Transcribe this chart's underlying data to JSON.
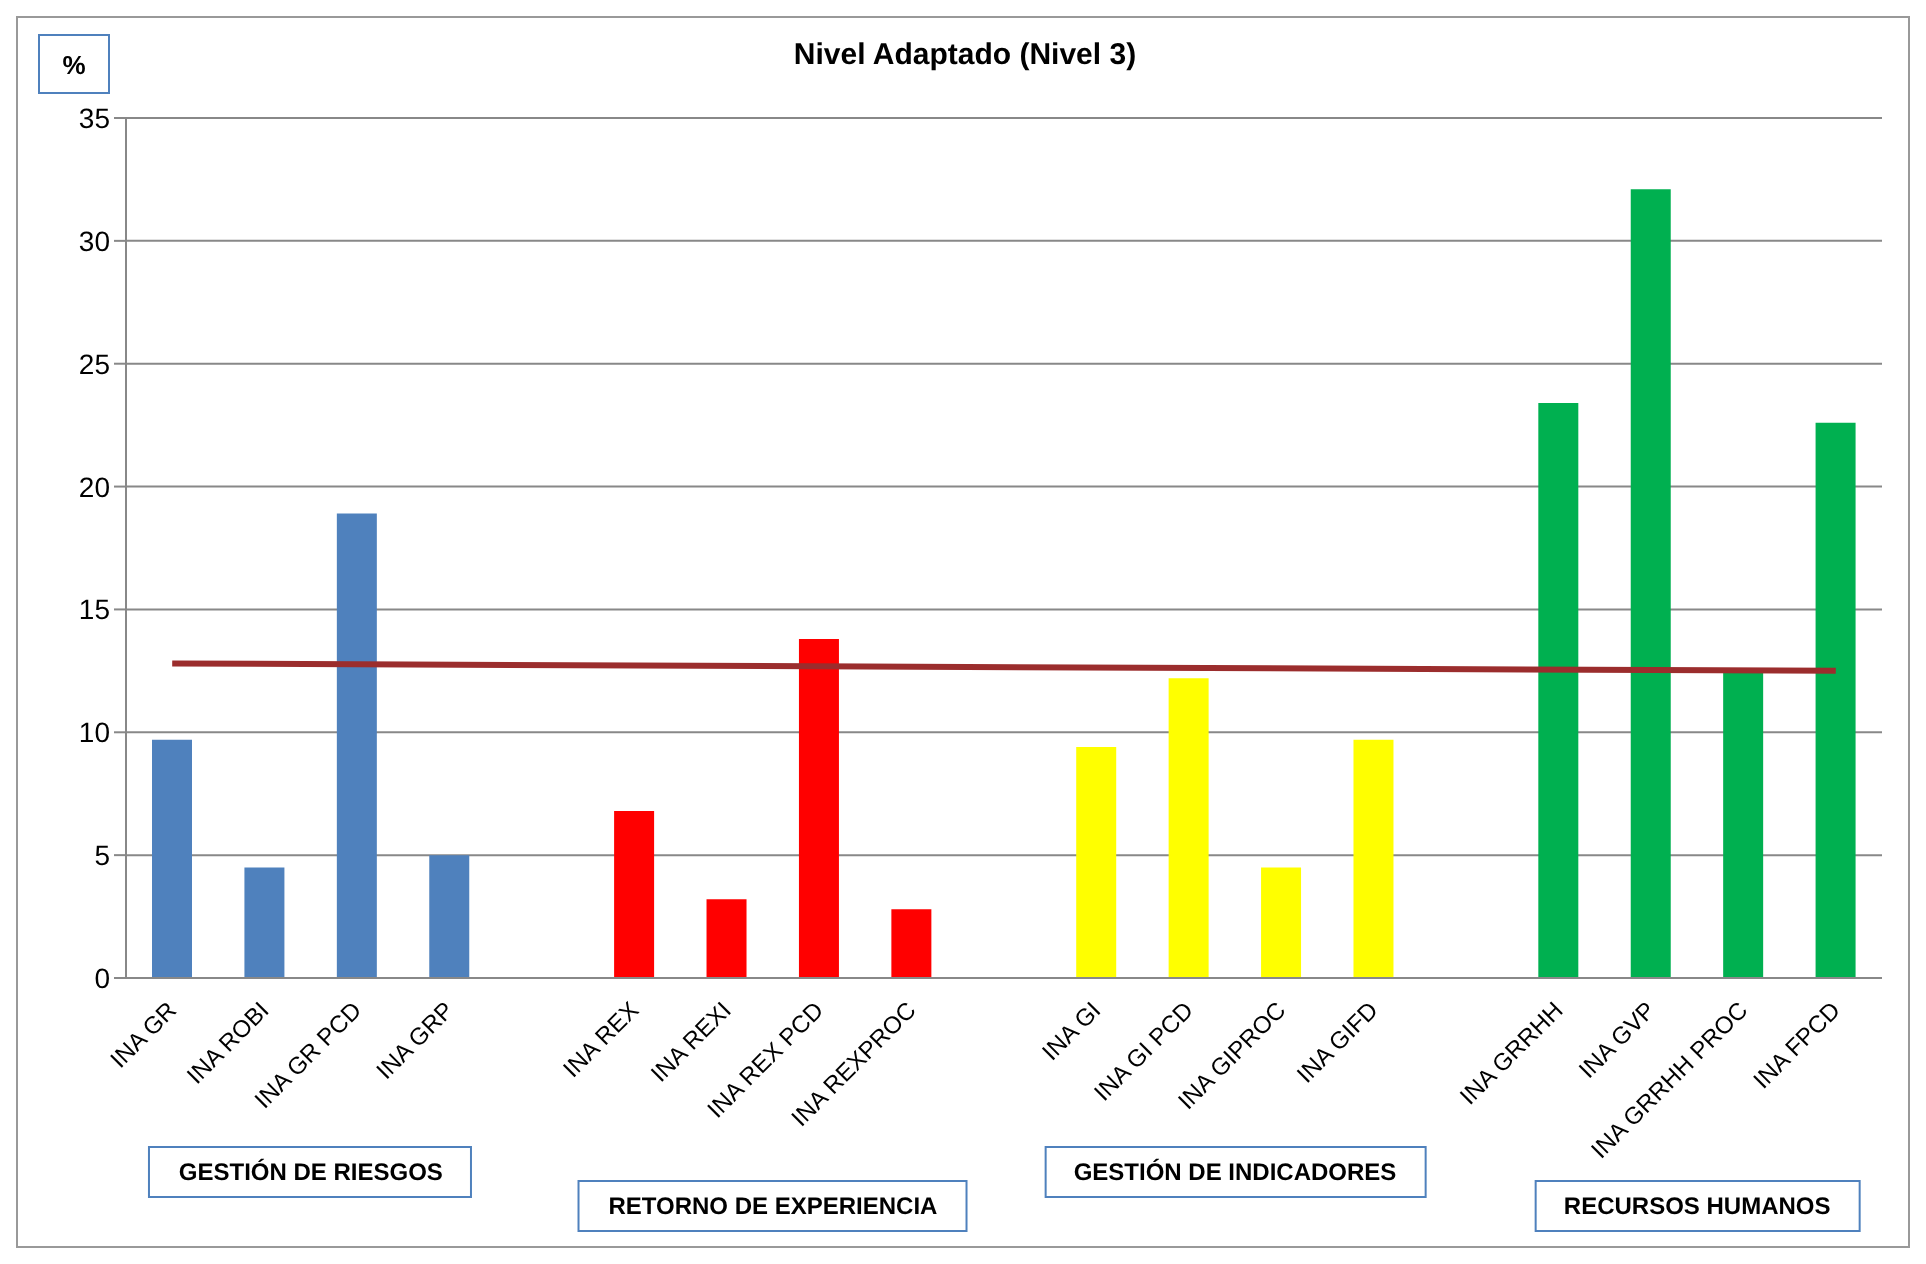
{
  "chart_data": {
    "type": "bar",
    "title": "Nivel Adaptado (Nivel 3)",
    "ylabel": "%",
    "categories": [
      "INA GR",
      "INA ROBI",
      "INA GR PCD",
      "INA GRP",
      null,
      "INA REX",
      "INA REXI",
      "INA REX PCD",
      "INA REXPROC",
      null,
      "INA GI",
      "INA GI PCD",
      "INA GIPROC",
      "INA GIFD",
      null,
      "INA GRRHH",
      "INA GVP",
      "INA GRRHH PROC",
      "INA FPCD"
    ],
    "series": [
      {
        "values": [
          9.7,
          4.5,
          18.9,
          5.0,
          null,
          6.8,
          3.2,
          13.8,
          2.8,
          null,
          9.4,
          12.2,
          4.5,
          9.7,
          null,
          23.4,
          32.1,
          12.5,
          22.6
        ],
        "colors": [
          "#4f81bd",
          "#4f81bd",
          "#4f81bd",
          "#4f81bd",
          null,
          "#ff0000",
          "#ff0000",
          "#ff0000",
          "#ff0000",
          null,
          "#ffff00",
          "#ffff00",
          "#ffff00",
          "#ffff00",
          null,
          "#00b050",
          "#00b050",
          "#00b050",
          "#00b050"
        ]
      },
      {
        "type": "line",
        "color": "#9b2d2d",
        "values": [
          12.8,
          null,
          null,
          null,
          null,
          null,
          null,
          null,
          null,
          null,
          null,
          null,
          null,
          null,
          null,
          null,
          null,
          null,
          12.5
        ]
      }
    ],
    "ylim": [
      0,
      35
    ],
    "yticks": [
      0,
      5,
      10,
      15,
      20,
      25,
      30,
      35
    ],
    "grid": "y",
    "legend": false,
    "annotations": [
      "GESTIÓN DE RIESGOS",
      "RETORNO DE EXPERIENCIA",
      "GESTIÓN DE INDICADORES",
      "RECURSOS HUMANOS"
    ]
  }
}
